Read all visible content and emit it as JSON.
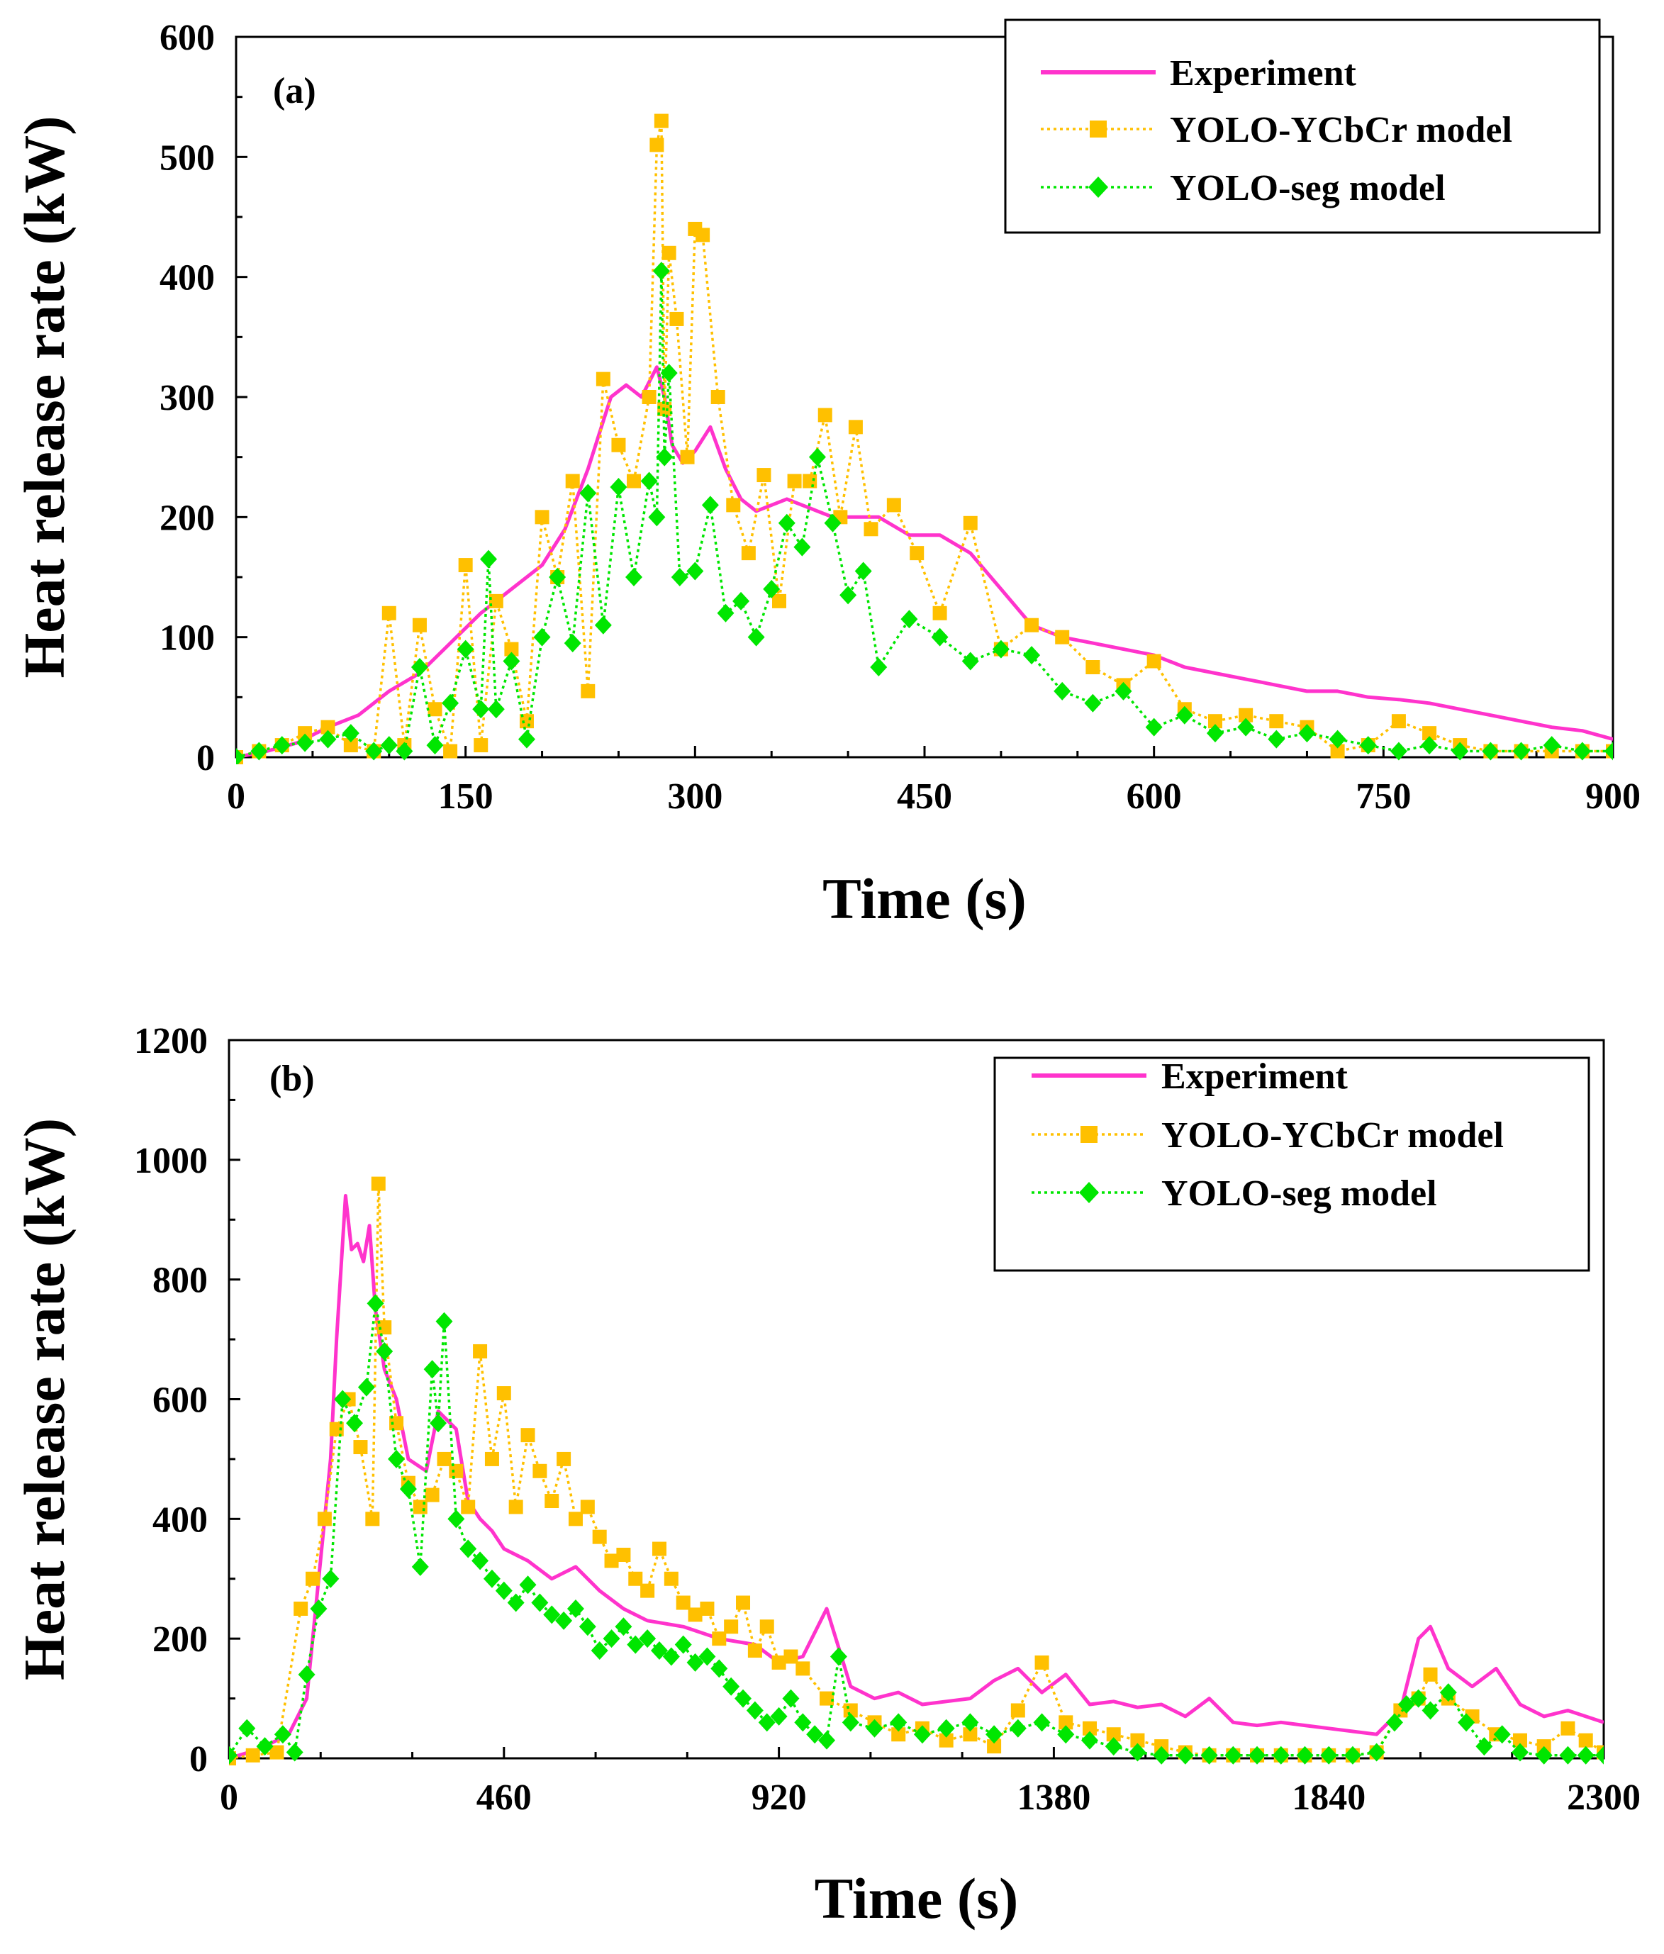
{
  "chart_data": [
    {
      "type": "line",
      "panel_label": "(a)",
      "xlabel": "Time (s)",
      "ylabel": "Heat release rate (kW)",
      "xlim": [
        0,
        900
      ],
      "ylim": [
        0,
        600
      ],
      "xticks": [
        0,
        150,
        300,
        450,
        600,
        750,
        900
      ],
      "xtick_labels": [
        "0",
        "150",
        "300",
        "450",
        "600",
        "750",
        "900"
      ],
      "yticks": [
        0,
        100,
        200,
        300,
        400,
        500,
        600
      ],
      "ytick_labels": [
        "0",
        "100",
        "200",
        "300",
        "400",
        "500",
        "600"
      ],
      "legend_position": "top-right",
      "series": [
        {
          "name": "Experiment",
          "color": "#FF33CC",
          "style": "solid",
          "marker": "none",
          "x": [
            0,
            20,
            40,
            60,
            80,
            100,
            120,
            140,
            160,
            180,
            200,
            215,
            230,
            245,
            255,
            265,
            275,
            280,
            285,
            292,
            300,
            310,
            320,
            330,
            340,
            350,
            360,
            370,
            380,
            390,
            400,
            420,
            440,
            460,
            480,
            500,
            520,
            540,
            560,
            580,
            600,
            620,
            640,
            660,
            680,
            700,
            720,
            740,
            760,
            780,
            800,
            820,
            840,
            860,
            880,
            900
          ],
          "y": [
            0,
            5,
            12,
            25,
            35,
            55,
            70,
            95,
            120,
            140,
            160,
            190,
            240,
            300,
            310,
            300,
            325,
            300,
            260,
            245,
            255,
            275,
            240,
            215,
            205,
            210,
            215,
            210,
            205,
            200,
            200,
            200,
            185,
            185,
            170,
            140,
            110,
            100,
            95,
            90,
            85,
            75,
            70,
            65,
            60,
            55,
            55,
            50,
            48,
            45,
            40,
            35,
            30,
            25,
            22,
            15
          ]
        },
        {
          "name": "YOLO-YCbCr model",
          "color": "#FFC000",
          "style": "dotted",
          "marker": "square",
          "x": [
            0,
            15,
            30,
            45,
            60,
            75,
            90,
            100,
            110,
            120,
            130,
            140,
            150,
            160,
            170,
            180,
            190,
            200,
            210,
            220,
            230,
            240,
            250,
            260,
            270,
            275,
            278,
            280,
            283,
            288,
            295,
            300,
            305,
            315,
            325,
            335,
            345,
            355,
            365,
            375,
            385,
            395,
            405,
            415,
            430,
            445,
            460,
            480,
            500,
            520,
            540,
            560,
            580,
            600,
            620,
            640,
            660,
            680,
            700,
            720,
            740,
            760,
            780,
            800,
            820,
            840,
            860,
            880,
            900
          ],
          "y": [
            0,
            5,
            10,
            20,
            25,
            10,
            5,
            120,
            10,
            110,
            40,
            5,
            160,
            10,
            130,
            90,
            30,
            200,
            150,
            230,
            55,
            315,
            260,
            230,
            300,
            510,
            530,
            290,
            420,
            365,
            250,
            440,
            435,
            300,
            210,
            170,
            235,
            130,
            230,
            230,
            285,
            200,
            275,
            190,
            210,
            170,
            120,
            195,
            90,
            110,
            100,
            75,
            60,
            80,
            40,
            30,
            35,
            30,
            25,
            5,
            10,
            30,
            20,
            10,
            5,
            5,
            5,
            5,
            5
          ]
        },
        {
          "name": "YOLO-seg model",
          "color": "#00E600",
          "style": "dotted",
          "marker": "diamond",
          "x": [
            0,
            15,
            30,
            45,
            60,
            75,
            90,
            100,
            110,
            120,
            130,
            140,
            150,
            160,
            165,
            170,
            180,
            190,
            200,
            210,
            220,
            230,
            240,
            250,
            260,
            270,
            275,
            278,
            280,
            283,
            290,
            300,
            310,
            320,
            330,
            340,
            350,
            360,
            370,
            380,
            390,
            400,
            410,
            420,
            440,
            460,
            480,
            500,
            520,
            540,
            560,
            580,
            600,
            620,
            640,
            660,
            680,
            700,
            720,
            740,
            760,
            780,
            800,
            820,
            840,
            860,
            880,
            900
          ],
          "y": [
            0,
            5,
            10,
            12,
            15,
            20,
            5,
            10,
            5,
            75,
            10,
            45,
            90,
            40,
            165,
            40,
            80,
            15,
            100,
            150,
            95,
            220,
            110,
            225,
            150,
            230,
            200,
            405,
            250,
            320,
            150,
            155,
            210,
            120,
            130,
            100,
            140,
            195,
            175,
            250,
            195,
            135,
            155,
            75,
            115,
            100,
            80,
            90,
            85,
            55,
            45,
            55,
            25,
            35,
            20,
            25,
            15,
            20,
            15,
            10,
            5,
            10,
            5,
            5,
            5,
            10,
            5,
            5
          ]
        }
      ]
    },
    {
      "type": "line",
      "panel_label": "(b)",
      "xlabel": "Time (s)",
      "ylabel": "Heat release rate (kW)",
      "xlim": [
        0,
        2300
      ],
      "ylim": [
        0,
        1200
      ],
      "xticks": [
        0,
        460,
        920,
        1380,
        1840,
        2300
      ],
      "xtick_labels": [
        "0",
        "460",
        "920",
        "1380",
        "1840",
        "2300"
      ],
      "yticks": [
        0,
        200,
        400,
        600,
        800,
        1000,
        1200
      ],
      "ytick_labels": [
        "0",
        "200",
        "400",
        "600",
        "800",
        "1000",
        "1200"
      ],
      "legend_position": "top-right",
      "series": [
        {
          "name": "Experiment",
          "color": "#FF33CC",
          "style": "solid",
          "marker": "none",
          "x": [
            0,
            50,
            100,
            130,
            150,
            170,
            180,
            195,
            205,
            215,
            225,
            235,
            245,
            260,
            280,
            300,
            330,
            350,
            380,
            400,
            420,
            440,
            460,
            500,
            540,
            580,
            620,
            660,
            700,
            760,
            820,
            880,
            920,
            960,
            1000,
            1040,
            1080,
            1120,
            1160,
            1200,
            1240,
            1280,
            1320,
            1360,
            1400,
            1440,
            1480,
            1520,
            1560,
            1600,
            1640,
            1680,
            1720,
            1760,
            1800,
            1840,
            1880,
            1920,
            1960,
            1990,
            2010,
            2040,
            2080,
            2120,
            2160,
            2200,
            2240,
            2270,
            2300
          ],
          "y": [
            0,
            15,
            40,
            100,
            300,
            500,
            700,
            940,
            850,
            860,
            830,
            890,
            750,
            650,
            600,
            500,
            480,
            580,
            550,
            430,
            400,
            380,
            350,
            330,
            300,
            320,
            280,
            250,
            230,
            220,
            200,
            190,
            160,
            170,
            250,
            120,
            100,
            110,
            90,
            95,
            100,
            130,
            150,
            110,
            140,
            90,
            95,
            85,
            90,
            70,
            100,
            60,
            55,
            60,
            55,
            50,
            45,
            40,
            80,
            200,
            220,
            150,
            120,
            150,
            90,
            70,
            80,
            70,
            60
          ]
        },
        {
          "name": "YOLO-YCbCr model",
          "color": "#FFC000",
          "style": "dotted",
          "marker": "square",
          "x": [
            0,
            40,
            80,
            120,
            140,
            160,
            180,
            200,
            220,
            240,
            250,
            260,
            280,
            300,
            320,
            340,
            360,
            380,
            400,
            420,
            440,
            460,
            480,
            500,
            520,
            540,
            560,
            580,
            600,
            620,
            640,
            660,
            680,
            700,
            720,
            740,
            760,
            780,
            800,
            820,
            840,
            860,
            880,
            900,
            920,
            940,
            960,
            1000,
            1040,
            1080,
            1120,
            1160,
            1200,
            1240,
            1280,
            1320,
            1360,
            1400,
            1440,
            1480,
            1520,
            1560,
            1600,
            1640,
            1680,
            1720,
            1760,
            1800,
            1840,
            1880,
            1920,
            1960,
            1990,
            2010,
            2040,
            2080,
            2120,
            2160,
            2200,
            2240,
            2270,
            2300
          ],
          "y": [
            0,
            5,
            10,
            250,
            300,
            400,
            550,
            600,
            520,
            400,
            960,
            720,
            560,
            460,
            420,
            440,
            500,
            480,
            420,
            680,
            500,
            610,
            420,
            540,
            480,
            430,
            500,
            400,
            420,
            370,
            330,
            340,
            300,
            280,
            350,
            300,
            260,
            240,
            250,
            200,
            220,
            260,
            180,
            220,
            160,
            170,
            150,
            100,
            80,
            60,
            40,
            50,
            30,
            40,
            20,
            80,
            160,
            60,
            50,
            40,
            30,
            20,
            10,
            5,
            5,
            5,
            5,
            5,
            5,
            5,
            10,
            80,
            100,
            140,
            100,
            70,
            40,
            30,
            20,
            50,
            30,
            10
          ]
        },
        {
          "name": "YOLO-seg model",
          "color": "#00E600",
          "style": "dotted",
          "marker": "diamond",
          "x": [
            0,
            30,
            60,
            90,
            110,
            130,
            150,
            170,
            190,
            210,
            230,
            245,
            260,
            280,
            300,
            320,
            340,
            350,
            360,
            380,
            400,
            420,
            440,
            460,
            480,
            500,
            520,
            540,
            560,
            580,
            600,
            620,
            640,
            660,
            680,
            700,
            720,
            740,
            760,
            780,
            800,
            820,
            840,
            860,
            880,
            900,
            920,
            940,
            960,
            980,
            1000,
            1020,
            1040,
            1080,
            1120,
            1160,
            1200,
            1240,
            1280,
            1320,
            1360,
            1400,
            1440,
            1480,
            1520,
            1560,
            1600,
            1640,
            1680,
            1720,
            1760,
            1800,
            1840,
            1880,
            1920,
            1950,
            1970,
            1990,
            2010,
            2040,
            2070,
            2100,
            2130,
            2160,
            2200,
            2240,
            2270,
            2300
          ],
          "y": [
            5,
            50,
            20,
            40,
            10,
            140,
            250,
            300,
            600,
            560,
            620,
            760,
            680,
            500,
            450,
            320,
            650,
            560,
            730,
            400,
            350,
            330,
            300,
            280,
            260,
            290,
            260,
            240,
            230,
            250,
            220,
            180,
            200,
            220,
            190,
            200,
            180,
            170,
            190,
            160,
            170,
            150,
            120,
            100,
            80,
            60,
            70,
            100,
            60,
            40,
            30,
            170,
            60,
            50,
            60,
            40,
            50,
            60,
            40,
            50,
            60,
            40,
            30,
            20,
            10,
            5,
            5,
            5,
            5,
            5,
            5,
            5,
            5,
            5,
            10,
            60,
            90,
            100,
            80,
            110,
            60,
            20,
            40,
            10,
            5,
            5,
            5,
            5
          ]
        }
      ]
    }
  ]
}
